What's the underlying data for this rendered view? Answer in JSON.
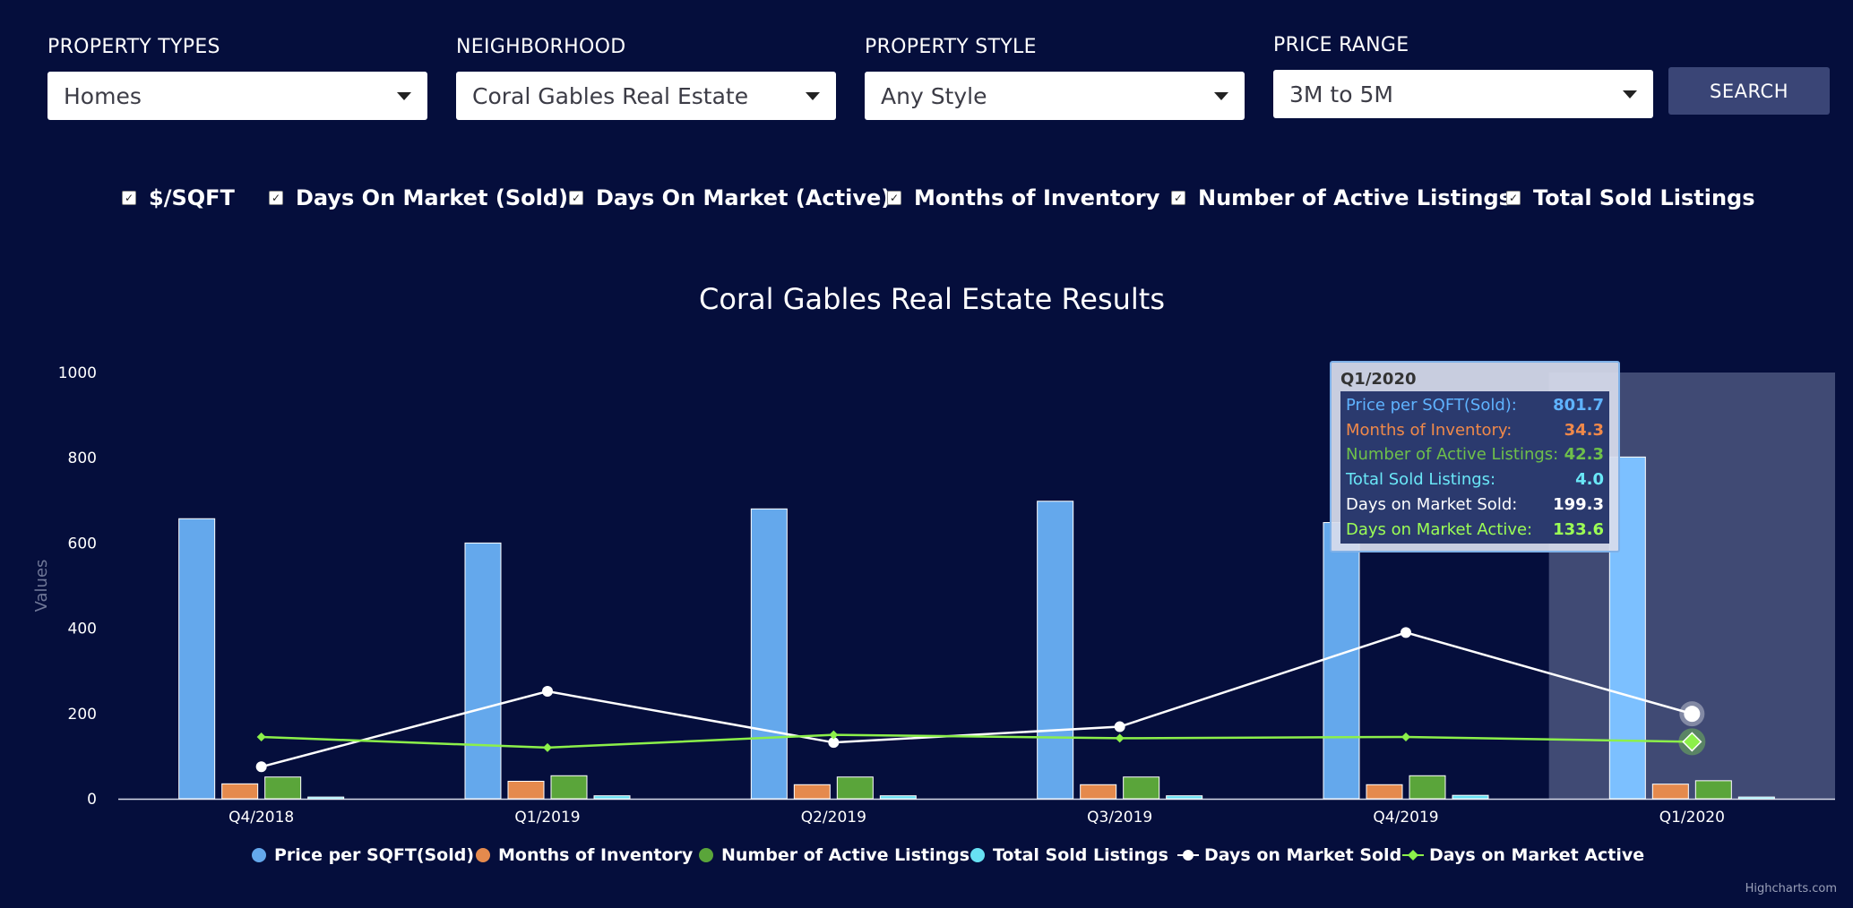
{
  "filters": {
    "property_types": {
      "label": "PROPERTY TYPES",
      "value": "Homes"
    },
    "neighborhood": {
      "label": "NEIGHBORHOOD",
      "value": "Coral Gables Real Estate"
    },
    "property_style": {
      "label": "PROPERTY STYLE",
      "value": "Any Style"
    },
    "price_range": {
      "label": "PRICE RANGE",
      "value": "3M to 5M"
    },
    "search_label": "SEARCH"
  },
  "checkboxes": [
    {
      "label": "$/SQFT",
      "checked": true
    },
    {
      "label": "Days On Market (Sold)",
      "checked": true
    },
    {
      "label": "Days On Market (Active)",
      "checked": true
    },
    {
      "label": "Months of Inventory",
      "checked": true
    },
    {
      "label": "Number of Active Listings",
      "checked": true
    },
    {
      "label": "Total Sold Listings",
      "checked": true
    }
  ],
  "chart_data": {
    "type": "bar",
    "title": "Coral Gables Real Estate Results",
    "ylabel": "Values",
    "xlabel": "",
    "ylim": [
      0,
      1000
    ],
    "yticks": [
      0,
      200,
      400,
      600,
      800,
      1000
    ],
    "categories": [
      "Q4/2018",
      "Q1/2019",
      "Q2/2019",
      "Q3/2019",
      "Q4/2019",
      "Q1/2020"
    ],
    "series": [
      {
        "name": "Price per SQFT(Sold)",
        "type": "bar",
        "color": "#64a8ec",
        "values": [
          657,
          600,
          680,
          698,
          648,
          801.7
        ]
      },
      {
        "name": "Months of Inventory",
        "type": "bar",
        "color": "#e58a4d",
        "values": [
          35,
          41,
          33,
          33,
          33,
          34.3
        ]
      },
      {
        "name": "Number of Active Listings",
        "type": "bar",
        "color": "#5aa53a",
        "values": [
          51,
          54,
          51,
          51,
          54,
          42.3
        ]
      },
      {
        "name": "Total Sold Listings",
        "type": "bar",
        "color": "#67e1f3",
        "values": [
          4,
          7,
          7,
          7,
          8,
          4.0
        ]
      },
      {
        "name": "Days on Market Sold",
        "type": "line",
        "color": "#ffffff",
        "values": [
          75,
          252,
          132,
          169,
          390,
          199.3
        ]
      },
      {
        "name": "Days on Market Active",
        "type": "line",
        "color": "#8cf04a",
        "values": [
          145,
          120,
          150,
          142,
          145,
          133.6
        ]
      }
    ],
    "highlight_category": "Q1/2020",
    "legend": "bottom-center",
    "credits": "Highcharts.com"
  },
  "tooltip": {
    "title": "Q1/2020",
    "rows": [
      {
        "label": "Price per SQFT(Sold):",
        "value": "801.7",
        "color": "#5fb3ff"
      },
      {
        "label": "Months of Inventory:",
        "value": "34.3",
        "color": "#f0894a"
      },
      {
        "label": "Number of Active Listings:",
        "value": "42.3",
        "color": "#6fc04a"
      },
      {
        "label": "Total Sold Listings:",
        "value": "4.0",
        "color": "#6ae7f7"
      },
      {
        "label": "Days on Market Sold:",
        "value": "199.3",
        "color": "#ffffff"
      },
      {
        "label": "Days on Market Active:",
        "value": "133.6",
        "color": "#9cff55"
      }
    ]
  }
}
